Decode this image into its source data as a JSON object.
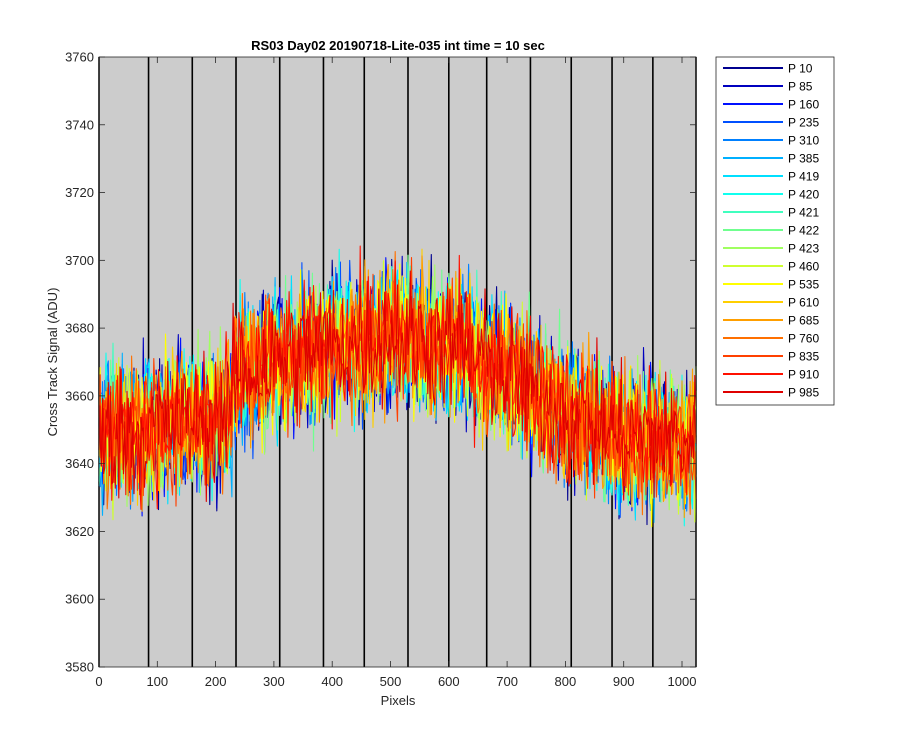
{
  "chart_data": {
    "type": "line",
    "title": "RS03 Day02 20190718-Lite-035 int time = 10 sec",
    "xlabel": "Pixels",
    "ylabel": "Cross Track Signal (ADU)",
    "xlim": [
      0,
      1024
    ],
    "ylim": [
      3580,
      3760
    ],
    "xticks": [
      0,
      100,
      200,
      300,
      400,
      500,
      600,
      700,
      800,
      900,
      1000
    ],
    "yticks": [
      3580,
      3600,
      3620,
      3640,
      3660,
      3680,
      3700,
      3720,
      3740,
      3760
    ],
    "background_color": "#cccccc",
    "grid": false,
    "vertical_markers_x": [
      0,
      85,
      160,
      235,
      310,
      385,
      455,
      530,
      600,
      665,
      740,
      810,
      880,
      950,
      1024
    ],
    "legend_position": "outside-right-top",
    "profile": {
      "x": [
        0,
        100,
        200,
        228,
        232,
        300,
        400,
        500,
        600,
        700,
        800,
        900,
        1024
      ],
      "mean": [
        3648,
        3651,
        3654,
        3655,
        3666,
        3670,
        3675,
        3678,
        3675,
        3667,
        3655,
        3648,
        3646
      ],
      "noise_range": 22
    },
    "series": [
      {
        "name": "P 10",
        "color": "#00008f"
      },
      {
        "name": "P 85",
        "color": "#0000bf"
      },
      {
        "name": "P 160",
        "color": "#0010ff"
      },
      {
        "name": "P 235",
        "color": "#0050ff"
      },
      {
        "name": "P 310",
        "color": "#0080ff"
      },
      {
        "name": "P 385",
        "color": "#00b0ff"
      },
      {
        "name": "P 419",
        "color": "#00dfff"
      },
      {
        "name": "P 420",
        "color": "#10ffef"
      },
      {
        "name": "P 421",
        "color": "#40ffbf"
      },
      {
        "name": "P 422",
        "color": "#70ff8f"
      },
      {
        "name": "P 423",
        "color": "#a0ff60"
      },
      {
        "name": "P 460",
        "color": "#cfff30"
      },
      {
        "name": "P 535",
        "color": "#ffff00"
      },
      {
        "name": "P 610",
        "color": "#ffcf00"
      },
      {
        "name": "P 685",
        "color": "#ff9f00"
      },
      {
        "name": "P 760",
        "color": "#ff7000"
      },
      {
        "name": "P 835",
        "color": "#ff4000"
      },
      {
        "name": "P 910",
        "color": "#ff1000"
      },
      {
        "name": "P 985",
        "color": "#df0000"
      }
    ]
  }
}
